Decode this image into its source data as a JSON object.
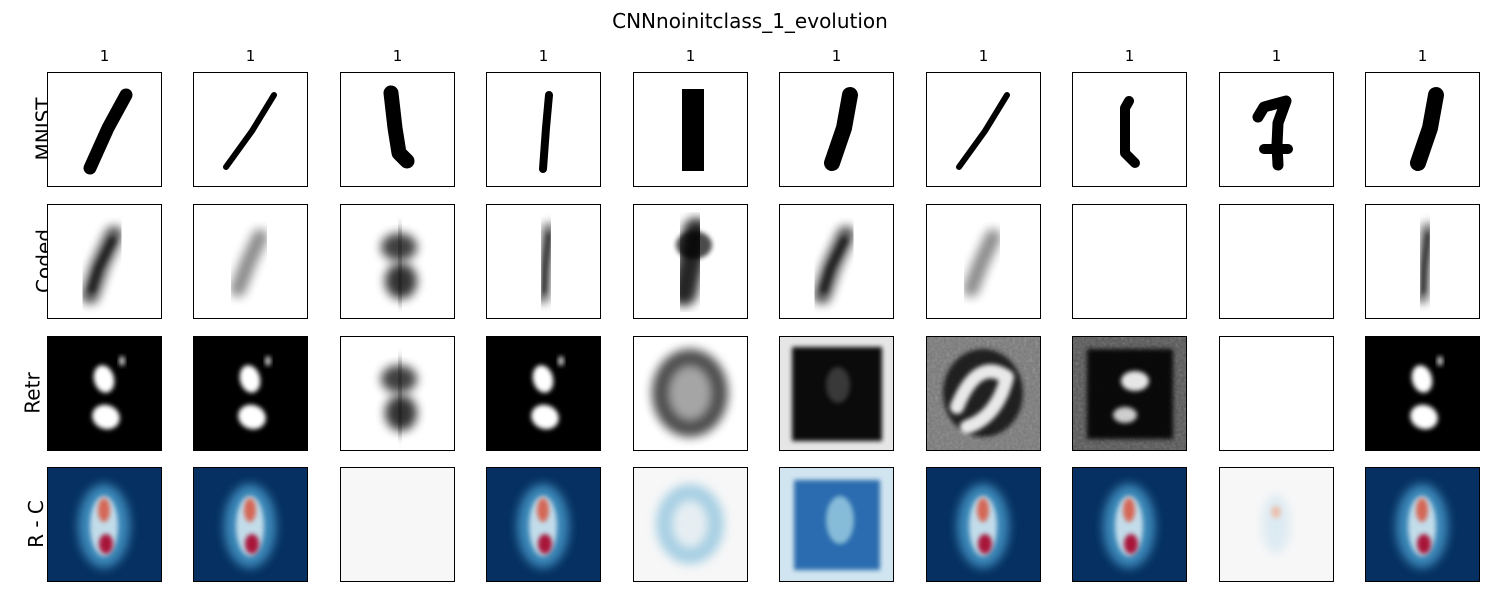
{
  "chart_data": {
    "type": "image-grid",
    "title": "CNNnoinitclass_1_evolution",
    "column_labels": [
      "1",
      "1",
      "1",
      "1",
      "1",
      "1",
      "1",
      "1",
      "1",
      "1"
    ],
    "row_labels": [
      "MNIST",
      "Coded",
      "Retr",
      "R - C"
    ],
    "row_colormaps": [
      "gray_r",
      "gray_r",
      "gray_r",
      "RdBu"
    ],
    "colors": {
      "ink": "#000000",
      "paper": "#ffffff",
      "rdbu_blue": "#053061",
      "rdbu_mid": "#f7f7f7",
      "rdbu_red": "#a50026"
    },
    "panels": [
      [
        {
          "kind": "digit-slant"
        },
        {
          "kind": "digit-thin-slant"
        },
        {
          "kind": "digit-thick-vertical"
        },
        {
          "kind": "digit-thin-vertical"
        },
        {
          "kind": "digit-block"
        },
        {
          "kind": "digit-thick-slant"
        },
        {
          "kind": "digit-thin-slant"
        },
        {
          "kind": "digit-hook"
        },
        {
          "kind": "digit-seven-one"
        },
        {
          "kind": "digit-thick-slant"
        }
      ],
      [
        {
          "kind": "blur-slant"
        },
        {
          "kind": "blur-faint-slant"
        },
        {
          "kind": "blur-two-blobs"
        },
        {
          "kind": "blur-thin"
        },
        {
          "kind": "blur-dark"
        },
        {
          "kind": "blur-slant"
        },
        {
          "kind": "blur-faint-slant"
        },
        {
          "kind": "blur-faint"
        },
        {
          "kind": "blur-faint"
        },
        {
          "kind": "blur-thin"
        }
      ],
      [
        {
          "kind": "inverted-blobs"
        },
        {
          "kind": "inverted-blobs"
        },
        {
          "kind": "blur-two-blobs"
        },
        {
          "kind": "inverted-blobs"
        },
        {
          "kind": "dark-ring"
        },
        {
          "kind": "dark-square"
        },
        {
          "kind": "noisy-swirl"
        },
        {
          "kind": "noisy-dark"
        },
        {
          "kind": "blur-faint"
        },
        {
          "kind": "inverted-blobs"
        }
      ],
      [
        {
          "kind": "diff-blue-red"
        },
        {
          "kind": "diff-blue-red"
        },
        {
          "kind": "diff-flat"
        },
        {
          "kind": "diff-blue-red"
        },
        {
          "kind": "diff-light-ring"
        },
        {
          "kind": "diff-blue-square"
        },
        {
          "kind": "diff-blue-red"
        },
        {
          "kind": "diff-blue-red"
        },
        {
          "kind": "diff-faint"
        },
        {
          "kind": "diff-blue-red"
        }
      ]
    ]
  }
}
